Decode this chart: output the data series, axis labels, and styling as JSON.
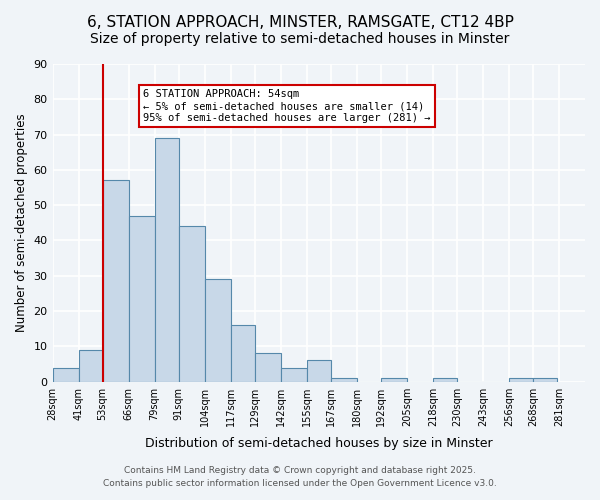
{
  "title1": "6, STATION APPROACH, MINSTER, RAMSGATE, CT12 4BP",
  "title2": "Size of property relative to semi-detached houses in Minster",
  "xlabel": "Distribution of semi-detached houses by size in Minster",
  "ylabel": "Number of semi-detached properties",
  "bin_labels": [
    "28sqm",
    "41sqm",
    "53sqm",
    "66sqm",
    "79sqm",
    "91sqm",
    "104sqm",
    "117sqm",
    "129sqm",
    "142sqm",
    "155sqm",
    "167sqm",
    "180sqm",
    "192sqm",
    "205sqm",
    "218sqm",
    "230sqm",
    "243sqm",
    "256sqm",
    "268sqm",
    "281sqm"
  ],
  "bin_edges": [
    28,
    41,
    53,
    66,
    79,
    91,
    104,
    117,
    129,
    142,
    155,
    167,
    180,
    192,
    205,
    218,
    230,
    243,
    256,
    268,
    281
  ],
  "values": [
    4,
    9,
    57,
    47,
    69,
    44,
    29,
    16,
    8,
    4,
    6,
    1,
    0,
    1,
    0,
    1,
    0,
    0,
    1,
    1
  ],
  "bar_color": "#c8d8e8",
  "bar_edge_color": "#5588aa",
  "vline_x": 53,
  "vline_color": "#cc0000",
  "annotation_title": "6 STATION APPROACH: 54sqm",
  "annotation_line1": "← 5% of semi-detached houses are smaller (14)",
  "annotation_line2": "95% of semi-detached houses are larger (281) →",
  "annotation_box_color": "#ffffff",
  "annotation_box_edge": "#cc0000",
  "footer1": "Contains HM Land Registry data © Crown copyright and database right 2025.",
  "footer2": "Contains public sector information licensed under the Open Government Licence v3.0.",
  "ylim": [
    0,
    90
  ],
  "yticks": [
    0,
    10,
    20,
    30,
    40,
    50,
    60,
    70,
    80,
    90
  ],
  "bg_color": "#f0f4f8",
  "grid_color": "#ffffff",
  "title1_fontsize": 11,
  "title2_fontsize": 10
}
